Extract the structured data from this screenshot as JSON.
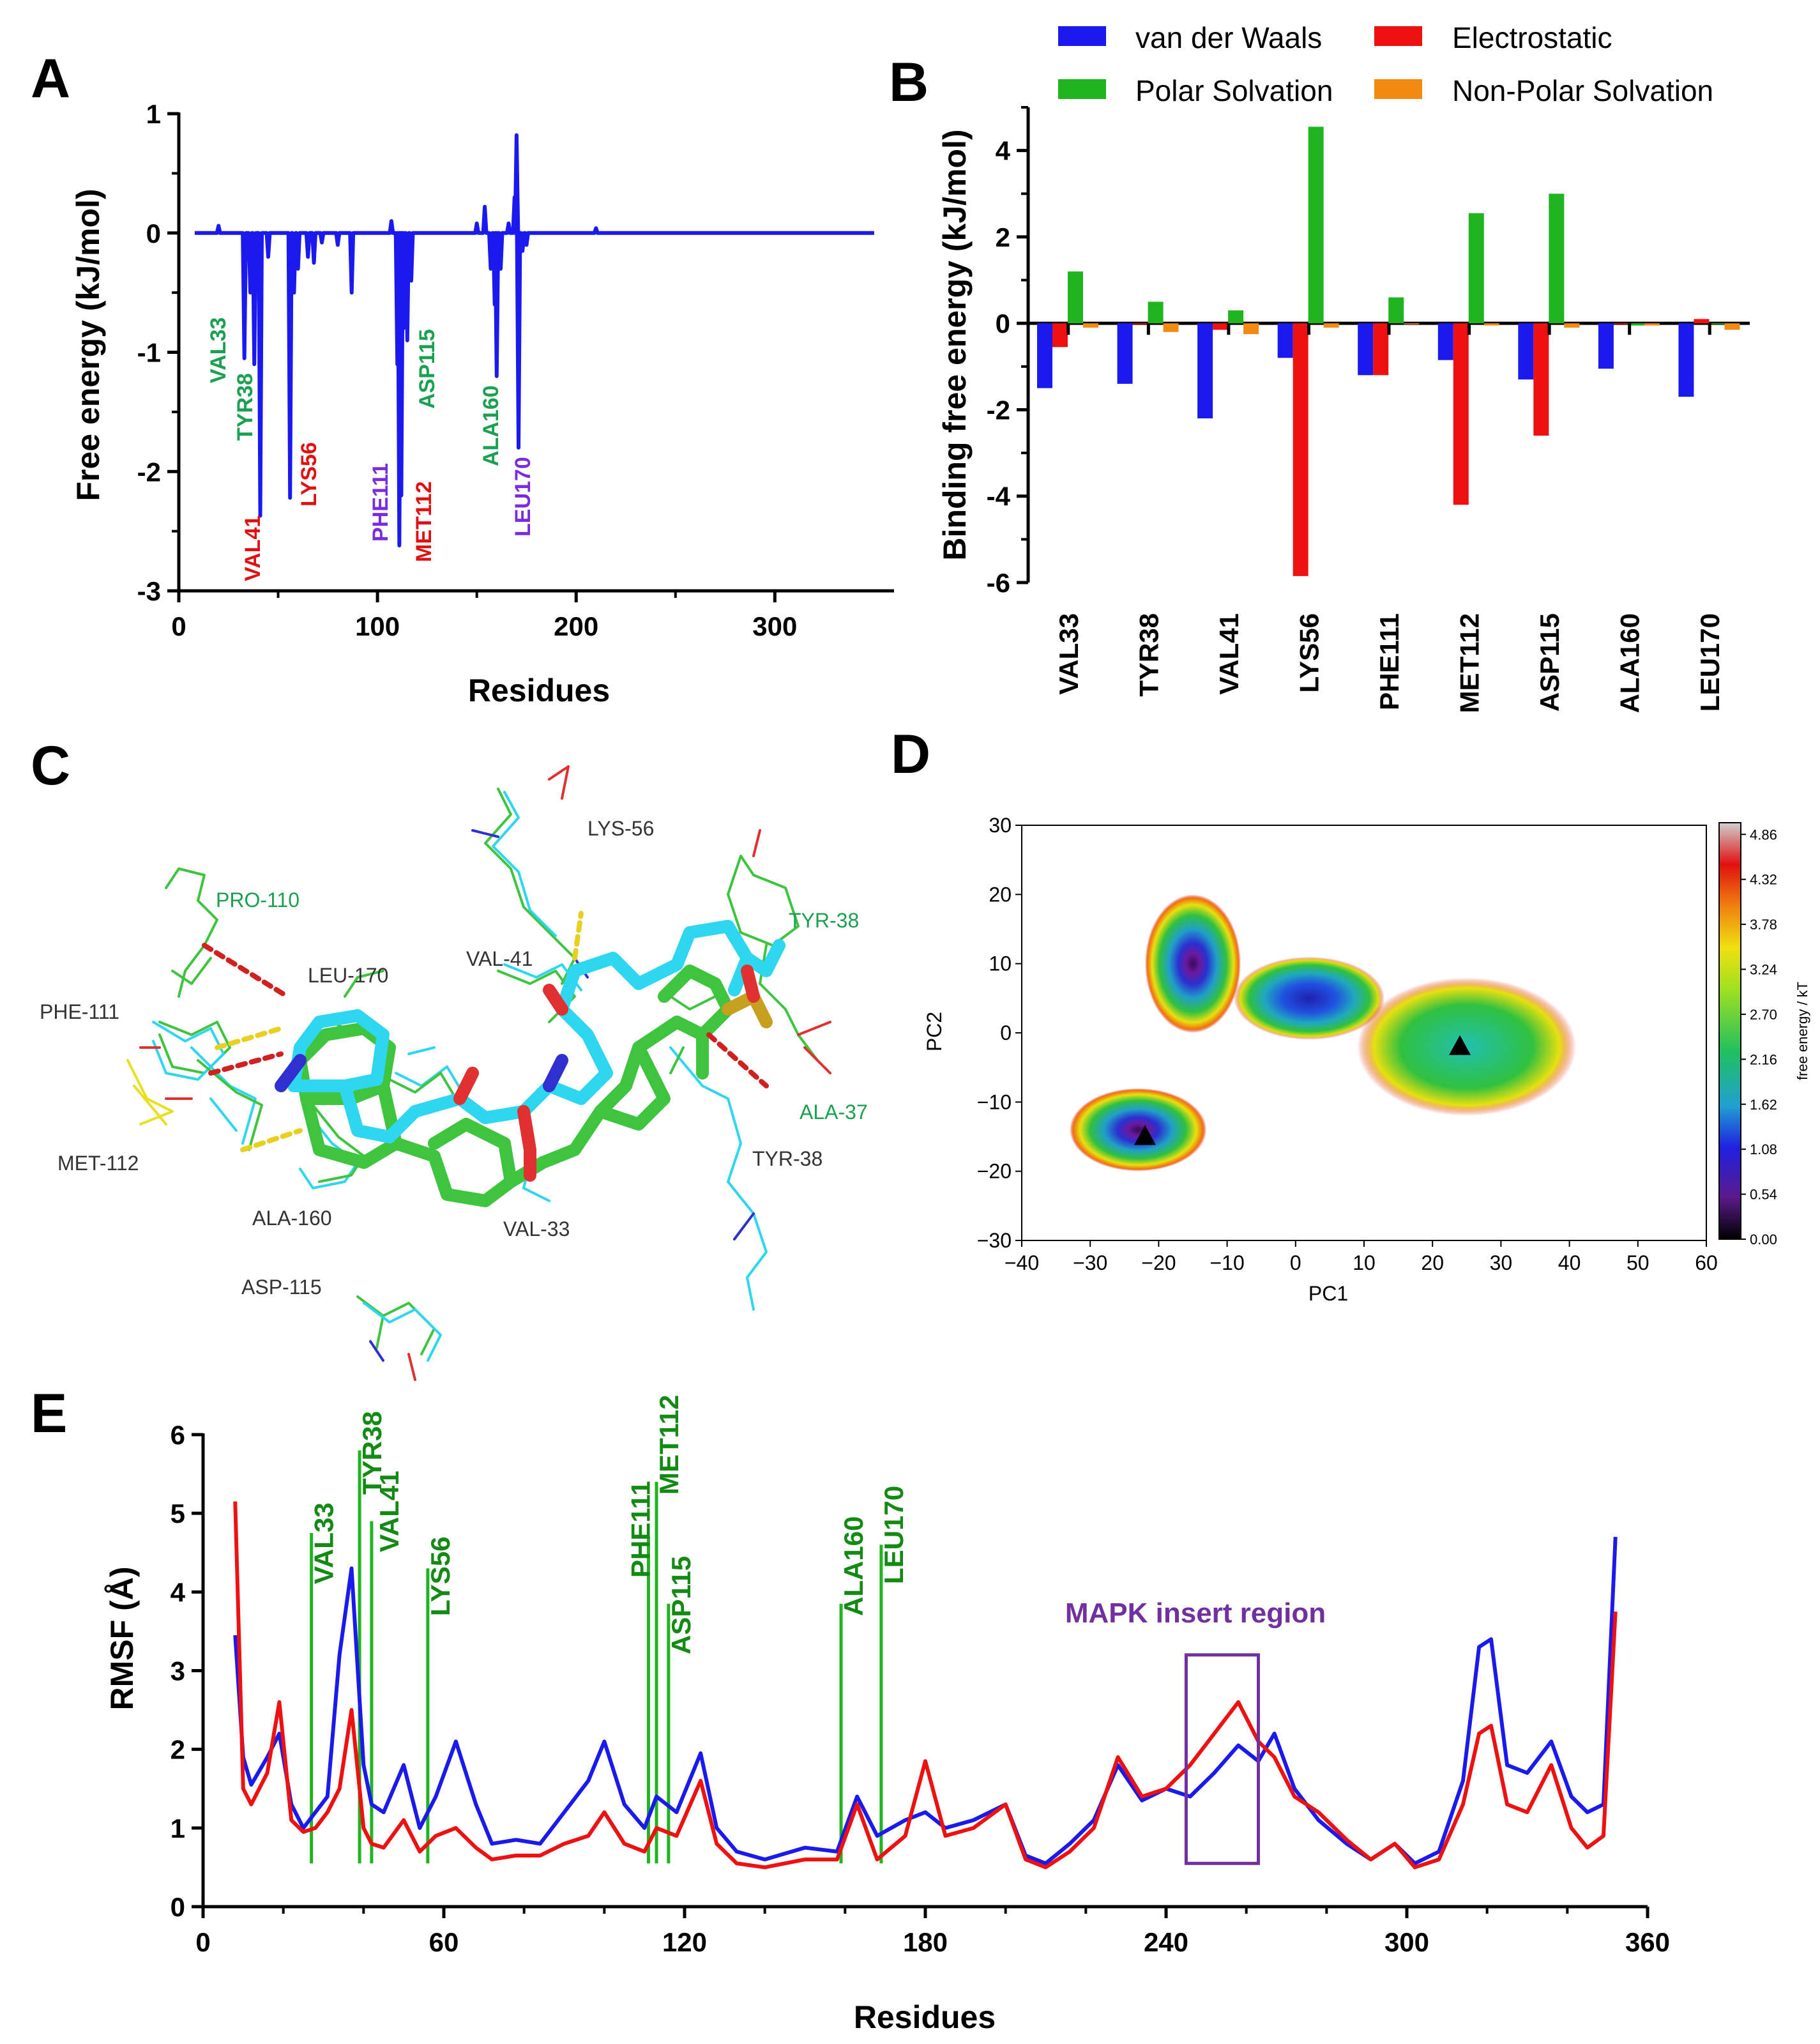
{
  "colors": {
    "blue": "#1a1aee",
    "red": "#ee1111",
    "green": "#21b421",
    "orange": "#f08a10",
    "label_green": "#1aa050",
    "label_red": "#e01010",
    "label_purple": "#7a2be0",
    "dark_green": "#138a13",
    "purple": "#7030a0",
    "mol_cyan": "#2ed6f0",
    "mol_green": "#3ec43e"
  },
  "panels": {
    "A": {
      "letter": "A",
      "xlabel": "Residues",
      "ylabel": "Free energy (kJ/mol)",
      "x_ticks": [
        "0",
        "100",
        "200",
        "300"
      ],
      "y_ticks": [
        "1",
        "0",
        "-1",
        "-2",
        "-3"
      ],
      "residue_labels": [
        {
          "text": "VAL33",
          "color": "label_green"
        },
        {
          "text": "TYR38",
          "color": "label_green"
        },
        {
          "text": "VAL41",
          "color": "label_red"
        },
        {
          "text": "LYS56",
          "color": "label_red"
        },
        {
          "text": "PHE111",
          "color": "label_purple"
        },
        {
          "text": "MET112",
          "color": "label_red"
        },
        {
          "text": "ASP115",
          "color": "label_green"
        },
        {
          "text": "ALA160",
          "color": "label_green"
        },
        {
          "text": "LEU170",
          "color": "label_purple"
        }
      ]
    },
    "B": {
      "letter": "B",
      "ylabel": "Binding free energy (kJ/mol)",
      "y_ticks": [
        "4",
        "2",
        "0",
        "-2",
        "-4",
        "-6"
      ],
      "legend": [
        "van der Waals",
        "Electrostatic",
        "Polar Solvation",
        "Non-Polar Solvation"
      ]
    },
    "C": {
      "letter": "C",
      "labels": [
        "LYS-56",
        "TYR-38",
        "PRO-110",
        "LEU-170",
        "VAL-41",
        "PHE-111",
        "ALA-37",
        "TYR-38",
        "MET-112",
        "ALA-160",
        "VAL-33",
        "ASP-115"
      ]
    },
    "D": {
      "letter": "D",
      "xlabel": "PC1",
      "ylabel": "PC2",
      "x_ticks": [
        "−40",
        "−30",
        "−20",
        "−10",
        "0",
        "10",
        "20",
        "30",
        "40",
        "50",
        "60"
      ],
      "y_ticks": [
        "30",
        "20",
        "10",
        "0",
        "−10",
        "−20",
        "−30"
      ],
      "colorbar_label": "free energy / kT",
      "colorbar_ticks": [
        "4.86",
        "4.32",
        "3.78",
        "3.24",
        "2.70",
        "2.16",
        "1.62",
        "1.08",
        "0.54",
        "0.00"
      ]
    },
    "E": {
      "letter": "E",
      "xlabel": "Residues",
      "ylabel": "RMSF (Å)",
      "x_ticks": [
        "0",
        "60",
        "120",
        "180",
        "240",
        "300",
        "360"
      ],
      "y_ticks": [
        "6",
        "5",
        "4",
        "3",
        "2",
        "1",
        "0"
      ],
      "residue_labels": [
        "VAL33",
        "TYR38",
        "VAL41",
        "LYS56",
        "PHE111",
        "MET112",
        "ASP115",
        "ALA160",
        "LEU170"
      ],
      "region_label": "MAPK insert region"
    }
  },
  "chart_data": [
    {
      "id": "A",
      "type": "line",
      "title": "",
      "xlabel": "Residues",
      "ylabel": "Free energy (kJ/mol)",
      "xlim": [
        0,
        360
      ],
      "ylim": [
        -3,
        1
      ],
      "baseline": 0,
      "x_start": 8,
      "x_end": 350,
      "features": [
        {
          "x": 20,
          "y": 0.06
        },
        {
          "x": 33,
          "y": -1.05
        },
        {
          "x": 36,
          "y": -0.5
        },
        {
          "x": 38,
          "y": -1.1
        },
        {
          "x": 41,
          "y": -2.37
        },
        {
          "x": 45,
          "y": -0.2
        },
        {
          "x": 56,
          "y": -2.22
        },
        {
          "x": 58,
          "y": -0.5
        },
        {
          "x": 60,
          "y": -0.3
        },
        {
          "x": 65,
          "y": -0.2
        },
        {
          "x": 68,
          "y": -0.25
        },
        {
          "x": 72,
          "y": -0.08
        },
        {
          "x": 80,
          "y": -0.1
        },
        {
          "x": 87,
          "y": -0.5
        },
        {
          "x": 107,
          "y": 0.1
        },
        {
          "x": 110,
          "y": -1.1
        },
        {
          "x": 111,
          "y": -2.62
        },
        {
          "x": 112,
          "y": -2.2
        },
        {
          "x": 113,
          "y": -0.8
        },
        {
          "x": 115,
          "y": -0.9
        },
        {
          "x": 117,
          "y": -0.4
        },
        {
          "x": 150,
          "y": 0.08
        },
        {
          "x": 154,
          "y": 0.22
        },
        {
          "x": 157,
          "y": -0.3
        },
        {
          "x": 159,
          "y": -0.6
        },
        {
          "x": 160,
          "y": -1.2
        },
        {
          "x": 162,
          "y": -0.3
        },
        {
          "x": 166,
          "y": 0.08
        },
        {
          "x": 169,
          "y": 0.3
        },
        {
          "x": 170,
          "y": 0.82
        },
        {
          "x": 171,
          "y": -1.8
        },
        {
          "x": 173,
          "y": -0.15
        },
        {
          "x": 175,
          "y": -0.1
        },
        {
          "x": 210,
          "y": 0.04
        }
      ]
    },
    {
      "id": "B",
      "type": "bar",
      "ylabel": "Binding free energy (kJ/mol)",
      "ylim": [
        -6,
        5
      ],
      "categories": [
        "VAL33",
        "TYR38",
        "VAL41",
        "LYS56",
        "PHE111",
        "MET112",
        "ASP115",
        "ALA160",
        "LEU170"
      ],
      "series": [
        {
          "name": "van der Waals",
          "color": "blue",
          "values": [
            -1.5,
            -1.4,
            -2.2,
            -0.8,
            -1.2,
            -0.85,
            -1.3,
            -1.05,
            -1.7
          ]
        },
        {
          "name": "Electrostatic",
          "color": "red",
          "values": [
            -0.55,
            0.0,
            -0.15,
            -5.85,
            -1.2,
            -4.2,
            -2.6,
            0.0,
            0.1
          ]
        },
        {
          "name": "Polar Solvation",
          "color": "green",
          "values": [
            1.2,
            0.5,
            0.3,
            4.55,
            0.6,
            2.55,
            3.0,
            -0.05,
            0.0
          ]
        },
        {
          "name": "Non-Polar Solvation",
          "color": "orange",
          "values": [
            -0.1,
            -0.2,
            -0.25,
            -0.1,
            0.0,
            -0.05,
            -0.1,
            -0.05,
            -0.15
          ]
        }
      ]
    },
    {
      "id": "D",
      "type": "heatmap",
      "xlabel": "PC1",
      "ylabel": "PC2",
      "xlim": [
        -40,
        60
      ],
      "ylim": [
        -30,
        30
      ],
      "colorbar": {
        "label": "free energy / kT",
        "range": [
          0.0,
          5.0
        ]
      },
      "minima": [
        {
          "x": -22,
          "y": -15
        },
        {
          "x": 24,
          "y": -2
        }
      ],
      "basins": [
        {
          "cx": 25,
          "cy": -2,
          "rx": 16,
          "ry": 10
        },
        {
          "cx": -23,
          "cy": -14,
          "rx": 10,
          "ry": 6
        },
        {
          "cx": -15,
          "cy": 10,
          "rx": 7,
          "ry": 10
        },
        {
          "cx": 2,
          "cy": 5,
          "rx": 11,
          "ry": 6
        }
      ]
    },
    {
      "id": "E",
      "type": "line",
      "xlabel": "Residues",
      "ylabel": "RMSF (Å)",
      "xlim": [
        0,
        360
      ],
      "ylim": [
        0,
        6
      ],
      "series": [
        {
          "name": "blue trace",
          "color": "blue",
          "x": [
            8,
            10,
            12,
            16,
            19,
            22,
            25,
            28,
            31,
            34,
            37,
            40,
            42,
            45,
            50,
            54,
            58,
            63,
            68,
            72,
            78,
            84,
            90,
            96,
            100,
            105,
            110,
            113,
            118,
            124,
            128,
            133,
            140,
            150,
            158,
            163,
            168,
            175,
            180,
            185,
            192,
            200,
            205,
            210,
            216,
            222,
            228,
            234,
            240,
            246,
            252,
            258,
            263,
            267,
            272,
            278,
            285,
            291,
            297,
            302,
            308,
            314,
            318,
            321,
            325,
            330,
            336,
            341,
            345,
            349,
            352
          ],
          "y": [
            3.45,
            1.9,
            1.55,
            1.9,
            2.2,
            1.3,
            1.0,
            1.2,
            1.4,
            3.2,
            4.3,
            1.8,
            1.3,
            1.2,
            1.8,
            1.0,
            1.4,
            2.1,
            1.3,
            0.8,
            0.85,
            0.8,
            1.2,
            1.6,
            2.1,
            1.3,
            1.0,
            1.4,
            1.2,
            1.95,
            1.0,
            0.7,
            0.6,
            0.75,
            0.7,
            1.4,
            0.9,
            1.1,
            1.2,
            1.0,
            1.1,
            1.3,
            0.65,
            0.55,
            0.8,
            1.1,
            1.8,
            1.35,
            1.5,
            1.4,
            1.7,
            2.05,
            1.85,
            2.2,
            1.5,
            1.1,
            0.8,
            0.6,
            0.8,
            0.55,
            0.7,
            1.6,
            3.3,
            3.4,
            1.8,
            1.7,
            2.1,
            1.4,
            1.2,
            1.3,
            4.7
          ]
        },
        {
          "name": "red trace",
          "color": "red",
          "x": [
            8,
            10,
            12,
            16,
            19,
            22,
            25,
            28,
            31,
            34,
            37,
            40,
            42,
            45,
            50,
            54,
            58,
            63,
            68,
            72,
            78,
            84,
            90,
            96,
            100,
            105,
            110,
            113,
            118,
            124,
            128,
            133,
            140,
            150,
            158,
            163,
            168,
            175,
            180,
            185,
            192,
            200,
            205,
            210,
            216,
            222,
            228,
            234,
            240,
            246,
            252,
            258,
            263,
            267,
            272,
            278,
            285,
            291,
            297,
            302,
            308,
            314,
            318,
            321,
            325,
            330,
            336,
            341,
            345,
            349,
            352
          ],
          "y": [
            5.15,
            1.5,
            1.3,
            1.7,
            2.6,
            1.1,
            0.95,
            1.0,
            1.2,
            1.5,
            2.5,
            1.0,
            0.8,
            0.75,
            1.1,
            0.7,
            0.9,
            1.0,
            0.75,
            0.6,
            0.65,
            0.65,
            0.8,
            0.9,
            1.2,
            0.8,
            0.7,
            1.0,
            0.9,
            1.6,
            0.8,
            0.55,
            0.5,
            0.6,
            0.6,
            1.3,
            0.6,
            0.9,
            1.85,
            0.9,
            1.0,
            1.3,
            0.6,
            0.5,
            0.7,
            1.0,
            1.9,
            1.4,
            1.5,
            1.8,
            2.2,
            2.6,
            2.1,
            1.9,
            1.4,
            1.2,
            0.85,
            0.6,
            0.8,
            0.5,
            0.6,
            1.3,
            2.2,
            2.3,
            1.3,
            1.2,
            1.8,
            1.0,
            0.75,
            0.9,
            3.75
          ]
        }
      ],
      "markers": [
        {
          "label": "VAL33",
          "x": 27,
          "top": 4.75
        },
        {
          "label": "TYR38",
          "x": 39,
          "top": 5.8
        },
        {
          "label": "VAL41",
          "x": 42,
          "top": 4.9
        },
        {
          "label": "LYS56",
          "x": 56,
          "top": 4.3
        },
        {
          "label": "PHE111",
          "x": 111,
          "top": 4.7
        },
        {
          "label": "MET112",
          "x": 113,
          "top": 5.4
        },
        {
          "label": "ASP115",
          "x": 116,
          "top": 3.85
        },
        {
          "label": "ALA160",
          "x": 159,
          "top": 3.85
        },
        {
          "label": "LEU170",
          "x": 169,
          "top": 4.6
        }
      ],
      "region": {
        "label": "MAPK insert region",
        "x0": 245,
        "x1": 263,
        "y0": 0.55,
        "y1": 3.2
      }
    }
  ]
}
